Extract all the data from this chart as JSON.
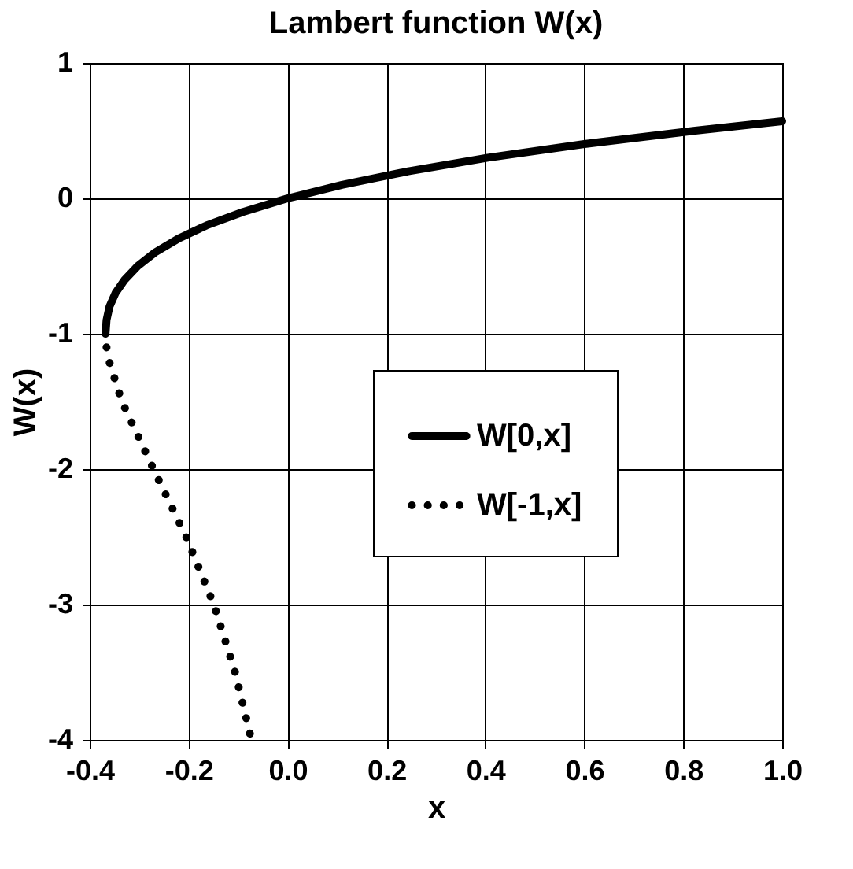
{
  "chart_data": {
    "type": "line",
    "title": "Lambert function W(x)",
    "xlabel": "x",
    "ylabel": "W(x)",
    "xlim": [
      -0.4,
      1.0
    ],
    "xticks": [
      -0.4,
      -0.2,
      {
        "value": 0,
        "label": "0.0"
      },
      0.2,
      0.4,
      0.6,
      0.8,
      {
        "value": 1,
        "label": "1.0"
      }
    ],
    "ylim": [
      -4,
      1
    ],
    "yticks": [
      -4,
      -3,
      -2,
      -1,
      0,
      1
    ],
    "grid": true,
    "legend": "center",
    "marker": "none",
    "series": [
      {
        "name": "W[0,x]",
        "color": "#000000",
        "line_style": "solid",
        "x": [
          -0.368,
          -0.366,
          -0.36,
          -0.348,
          -0.329,
          -0.303,
          -0.268,
          -0.222,
          -0.164,
          -0.09,
          0,
          0.11,
          0.244,
          0.405,
          0.597,
          0.824,
          1.0
        ],
        "values": [
          -1,
          -0.9,
          -0.8,
          -0.7,
          -0.6,
          -0.5,
          -0.4,
          -0.3,
          -0.2,
          -0.1,
          0,
          0.1,
          0.2,
          0.3,
          0.4,
          0.5,
          0.57
        ]
      },
      {
        "name": "W[-1,x]",
        "color": "#000000",
        "line_style": "dotted",
        "x": [
          -0.366,
          -0.361,
          -0.335,
          -0.271,
          -0.205,
          -0.149,
          -0.106,
          -0.073
        ],
        "values": [
          -1.1,
          -1.2,
          -1.5,
          -2,
          -2.5,
          -3,
          -3.5,
          -4
        ]
      }
    ]
  }
}
